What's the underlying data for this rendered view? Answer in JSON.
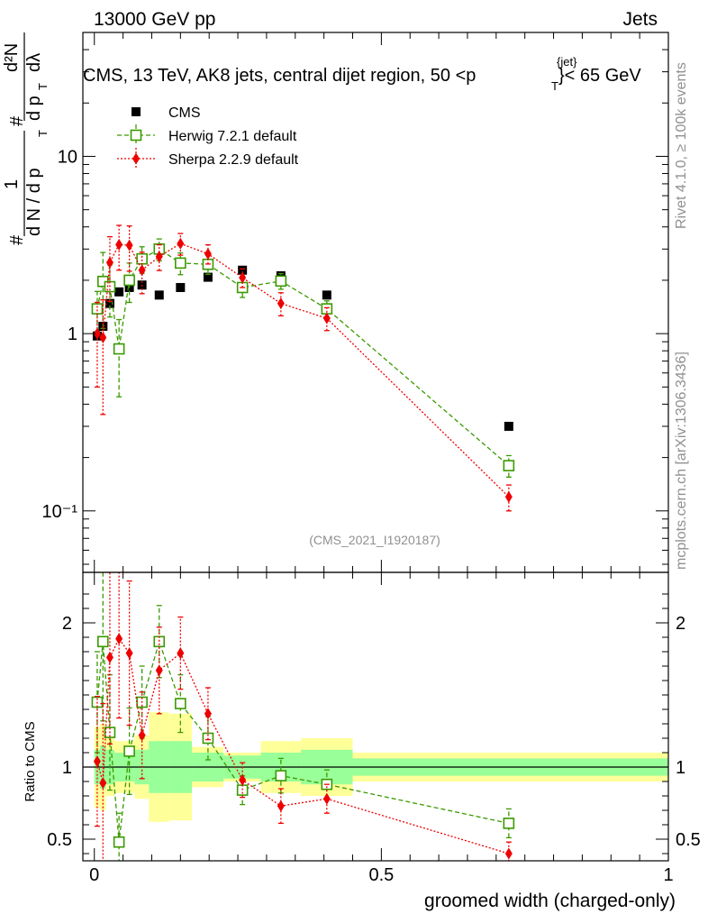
{
  "header": {
    "left": "13000 GeV pp",
    "right": "Jets"
  },
  "title": {
    "main": "CMS, 13 TeV, AK8 jets, central dijet region, 50 <p",
    "sup": "{jet}",
    "sub": "T",
    "tail": "}< 65 GeV"
  },
  "side_labels": {
    "rivet": "Rivet 4.1.0, ≥ 100k events",
    "mcplots": "mcplots.cern.ch [arXiv:1306.3436]"
  },
  "watermark": "(CMS_2021_I1920187)",
  "ylabel_main": {
    "hash": "#",
    "one": "1",
    "dN_dpT": "d N / d p",
    "T": "T",
    "d2N": "d²N",
    "dpT": "d p",
    "dlambda": "dλ"
  },
  "ylabel_ratio": "Ratio to CMS",
  "xlabel": "groomed width (charged-only)",
  "legend": [
    {
      "name": "CMS",
      "color": "#000000",
      "marker": "filled-square"
    },
    {
      "name": "Herwig 7.2.1 default",
      "color": "#3a9a00",
      "marker": "open-square"
    },
    {
      "name": "Sherpa 2.2.9 default",
      "color": "#ee0000",
      "marker": "diamond"
    }
  ],
  "chart_data": [
    {
      "type": "scatter",
      "panel": "main",
      "yscale": "log",
      "xlim": [
        -0.02,
        1.0
      ],
      "ylim": [
        0.045,
        50
      ],
      "x_ticks": [
        "0",
        "0.5",
        "1"
      ],
      "y_ticks": [
        "10⁻¹",
        "1",
        "10"
      ],
      "series": [
        {
          "name": "CMS",
          "x": [
            0.005,
            0.015,
            0.027,
            0.043,
            0.061,
            0.083,
            0.113,
            0.15,
            0.198,
            0.258,
            0.325,
            0.405,
            0.722
          ],
          "y": [
            0.97,
            1.1,
            1.48,
            1.72,
            1.82,
            1.88,
            1.65,
            1.82,
            2.08,
            2.28,
            2.12,
            1.65,
            0.3
          ]
        },
        {
          "name": "Herwig 7.2.1 default",
          "x": [
            0.005,
            0.015,
            0.027,
            0.043,
            0.061,
            0.083,
            0.113,
            0.15,
            0.198,
            0.258,
            0.325,
            0.405,
            0.722
          ],
          "y": [
            1.38,
            1.97,
            1.84,
            0.82,
            2.0,
            2.64,
            3.0,
            2.5,
            2.46,
            1.82,
            1.98,
            1.38,
            0.18
          ],
          "yerr": [
            0.35,
            0.9,
            0.6,
            0.38,
            0.5,
            0.45,
            0.42,
            0.35,
            0.3,
            0.22,
            0.2,
            0.15,
            0.025
          ]
        },
        {
          "name": "Sherpa 2.2.9 default",
          "x": [
            0.005,
            0.015,
            0.027,
            0.043,
            0.061,
            0.083,
            0.113,
            0.15,
            0.198,
            0.258,
            0.325,
            0.405,
            0.722
          ],
          "y": [
            1.0,
            0.95,
            2.52,
            3.18,
            3.15,
            2.28,
            2.72,
            3.22,
            2.82,
            2.07,
            1.48,
            1.22,
            0.12
          ],
          "yerr": [
            0.5,
            0.6,
            1.0,
            0.9,
            0.9,
            0.6,
            0.45,
            0.45,
            0.35,
            0.25,
            0.22,
            0.18,
            0.02
          ]
        }
      ]
    },
    {
      "type": "scatter",
      "panel": "ratio",
      "xlim": [
        -0.02,
        1.0
      ],
      "ylim": [
        0.35,
        2.35
      ],
      "x_ticks": [
        "0",
        "0.5",
        "1"
      ],
      "y_ticks": [
        "0.5",
        "1",
        "2"
      ],
      "reference_line": 1.0,
      "bands": [
        {
          "x": [
            0.0,
            0.01
          ],
          "inner": [
            0.88,
            1.12
          ],
          "outer": [
            0.72,
            1.28
          ]
        },
        {
          "x": [
            0.01,
            0.02
          ],
          "inner": [
            0.85,
            1.15
          ],
          "outer": [
            0.7,
            1.3
          ]
        },
        {
          "x": [
            0.02,
            0.035
          ],
          "inner": [
            0.88,
            1.12
          ],
          "outer": [
            0.8,
            1.2
          ]
        },
        {
          "x": [
            0.035,
            0.05
          ],
          "inner": [
            0.9,
            1.1
          ],
          "outer": [
            0.82,
            1.18
          ]
        },
        {
          "x": [
            0.05,
            0.07
          ],
          "inner": [
            0.9,
            1.1
          ],
          "outer": [
            0.82,
            1.18
          ]
        },
        {
          "x": [
            0.07,
            0.095
          ],
          "inner": [
            0.88,
            1.12
          ],
          "outer": [
            0.78,
            1.22
          ]
        },
        {
          "x": [
            0.095,
            0.13
          ],
          "inner": [
            0.82,
            1.18
          ],
          "outer": [
            0.62,
            1.38
          ]
        },
        {
          "x": [
            0.13,
            0.17
          ],
          "inner": [
            0.82,
            1.18
          ],
          "outer": [
            0.63,
            1.37
          ]
        },
        {
          "x": [
            0.17,
            0.225
          ],
          "inner": [
            0.9,
            1.1
          ],
          "outer": [
            0.86,
            1.14
          ]
        },
        {
          "x": [
            0.225,
            0.29
          ],
          "inner": [
            0.92,
            1.08
          ],
          "outer": [
            0.9,
            1.1
          ]
        },
        {
          "x": [
            0.29,
            0.36
          ],
          "inner": [
            0.9,
            1.1
          ],
          "outer": [
            0.82,
            1.18
          ]
        },
        {
          "x": [
            0.36,
            0.45
          ],
          "inner": [
            0.88,
            1.12
          ],
          "outer": [
            0.8,
            1.2
          ]
        },
        {
          "x": [
            0.45,
            1.0
          ],
          "inner": [
            0.94,
            1.06
          ],
          "outer": [
            0.9,
            1.1
          ]
        }
      ],
      "series": [
        {
          "name": "Herwig 7.2.1 default",
          "x": [
            0.005,
            0.015,
            0.027,
            0.043,
            0.061,
            0.083,
            0.113,
            0.15,
            0.198,
            0.258,
            0.325,
            0.405,
            0.722
          ],
          "y": [
            1.45,
            1.87,
            1.24,
            0.48,
            1.11,
            1.45,
            1.87,
            1.44,
            1.2,
            0.84,
            0.94,
            0.88,
            0.61
          ],
          "yerr": [
            0.35,
            0.55,
            0.4,
            0.2,
            0.3,
            0.25,
            0.25,
            0.2,
            0.15,
            0.1,
            0.12,
            0.1,
            0.1
          ]
        },
        {
          "name": "Sherpa 2.2.9 default",
          "x": [
            0.005,
            0.015,
            0.027,
            0.043,
            0.061,
            0.083,
            0.113,
            0.15,
            0.198,
            0.258,
            0.325,
            0.405,
            0.722
          ],
          "y": [
            1.04,
            0.89,
            1.76,
            1.89,
            1.79,
            1.22,
            1.67,
            1.79,
            1.37,
            0.91,
            0.73,
            0.78,
            0.4
          ],
          "yerr": [
            0.45,
            0.55,
            0.6,
            0.55,
            0.5,
            0.3,
            0.3,
            0.25,
            0.18,
            0.12,
            0.12,
            0.1,
            0.08
          ]
        }
      ]
    }
  ]
}
